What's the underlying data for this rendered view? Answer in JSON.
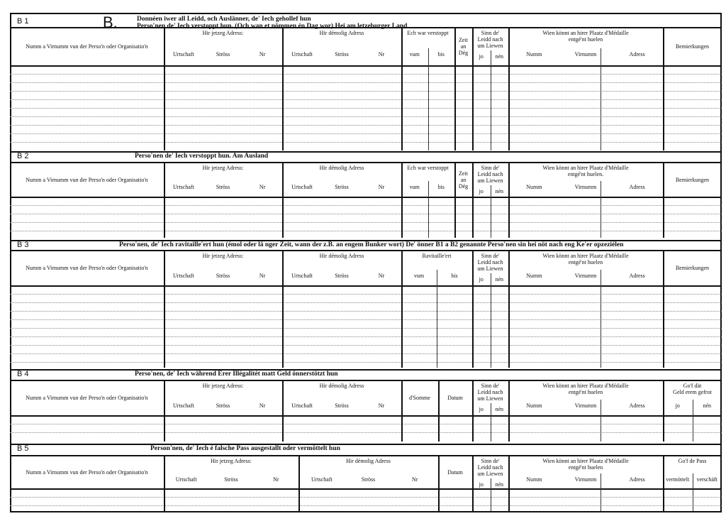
{
  "big_letter": "B.",
  "sections": [
    {
      "code": "B 1",
      "title_lines": [
        "Donnéen iwer all Leidd, och Auslänner, de' Iech gehollef hun",
        "Perso'nen de' Iech verstoppt hun. (Och wan et nömmen én Dag wor)    Hei am letzeburger Land"
      ],
      "columns": [
        {
          "label": [
            "Numm a Virnumm vun der Perso'n oder Organisatio'n"
          ],
          "sub": []
        },
        {
          "label": [
            "Hir jetzeg Adress:"
          ],
          "sub": [
            "Urtschaft",
            "Ströss",
            "Nr"
          ]
        },
        {
          "label": [
            "Hir démolig Adress"
          ],
          "sub": [
            "Urtschaft",
            "Ströss",
            "Nr"
          ]
        },
        {
          "label": [
            "Ech war verstoppt"
          ],
          "sub": [
            "vum",
            "bis"
          ]
        },
        {
          "label": [
            "Zeit",
            "an",
            "Dég"
          ],
          "sub": []
        },
        {
          "label": [
            "Sinn de'",
            "Leidd nach",
            "um Liewen"
          ],
          "sub": [
            "jo",
            "nén"
          ]
        },
        {
          "label": [
            "Wien könnt an hirer Plaatz d'Médaille",
            "entgé'nt huelen"
          ],
          "sub": [
            "Numm",
            "Virnumm",
            "Adress"
          ]
        },
        {
          "label": [
            "Bemierkungen"
          ],
          "sub": []
        }
      ]
    },
    {
      "code": "B 2",
      "title_lines": [
        "Perso'nen de' Iech verstoppt hun.                    Am Ausland"
      ],
      "columns": [
        {
          "label": [
            "Numm a Virnumm vun der Perso'n oder Organisatio'n"
          ],
          "sub": []
        },
        {
          "label": [
            "Hir jetzeg Adress:"
          ],
          "sub": [
            "Urtschaft",
            "Ströss",
            "Nr"
          ]
        },
        {
          "label": [
            "Hir démolig Adress"
          ],
          "sub": [
            "Urtschaft",
            "Ströss",
            "Nr"
          ]
        },
        {
          "label": [
            "Ech war verstoppt"
          ],
          "sub": [
            "vum",
            "bis"
          ]
        },
        {
          "label": [
            "Zeit",
            "an",
            "Dég"
          ],
          "sub": []
        },
        {
          "label": [
            "Sinn de'",
            "Leidd nach",
            "um Liewen"
          ],
          "sub": [
            "jo",
            "nén"
          ]
        },
        {
          "label": [
            "Wien könnt an hirer Plaatz d'Médaille",
            "entgé'nt huelen."
          ],
          "sub": [
            "Numm",
            "Virnumm",
            "Adress"
          ]
        },
        {
          "label": [
            "Bemierkungen"
          ],
          "sub": []
        }
      ]
    },
    {
      "code": "B 3",
      "title_lines": [
        "Perso'nen, de' Iech ravitaille'ert hun (émol oder lä nger Zeit, wann der z.B. an engem Bunker wort)   De' önner B1 a B2 genannte Perso'nen sin hei nöt nach eng Ke'er opzeziélen"
      ],
      "columns": [
        {
          "label": [
            "Numm a Virnumm vun der Perso'n oder Organisatio'n"
          ],
          "sub": []
        },
        {
          "label": [
            "Hir jetzeg Adress:"
          ],
          "sub": [
            "Urtschaft",
            "Ströss",
            "Nr"
          ]
        },
        {
          "label": [
            "Hir démolig Adress"
          ],
          "sub": [
            "Urtschaft",
            "Ströss",
            "Nr"
          ]
        },
        {
          "label": [
            "Ravitaille'ert"
          ],
          "sub": [
            "vum",
            "bis"
          ]
        },
        {
          "label": [
            "Sinn de'",
            "Leidd nach",
            "um Liewen"
          ],
          "sub": [
            "jo",
            "nén"
          ]
        },
        {
          "label": [
            "Wien könnt an hirer Plaatz d'Médaille",
            "entgé'nt huelen"
          ],
          "sub": [
            "Numm",
            "Virnumm",
            "Adress"
          ]
        },
        {
          "label": [
            "Bemierkungen"
          ],
          "sub": []
        }
      ]
    },
    {
      "code": "B 4",
      "title_lines": [
        "Perso'nen, de' Iech während Erer Illégalitét matt Geld önnerstötzt hun"
      ],
      "columns": [
        {
          "label": [
            "Numm a Virnumm vun der Perso'n oder Organisatio'n"
          ],
          "sub": []
        },
        {
          "label": [
            "Hir jetzeg Adress:"
          ],
          "sub": [
            "Urtschaft",
            "Ströss",
            "Nr"
          ]
        },
        {
          "label": [
            "Hir démolig Adress"
          ],
          "sub": [
            "Urtschaft",
            "Ströss",
            "Nr"
          ]
        },
        {
          "label": [
            "d'Somme"
          ],
          "sub": []
        },
        {
          "label": [
            "Datum"
          ],
          "sub": []
        },
        {
          "label": [
            "Sinn de'",
            "Leidd nach",
            "um Liewen"
          ],
          "sub": [
            "jo",
            "nén"
          ]
        },
        {
          "label": [
            "Wien könnt an hirer Plaatz d'Médaille",
            "entgé'nt huelen"
          ],
          "sub": [
            "Numm",
            "Virnumm",
            "Adress"
          ]
        },
        {
          "label": [
            "Go'f dät",
            "Geld erem gefrot"
          ],
          "sub": [
            "jo",
            "nén"
          ]
        }
      ]
    },
    {
      "code": "B 5",
      "title_lines": [
        "Person'nen, de' Iech é falsche Pass ausgestallt oder  vermöttelt hun"
      ],
      "columns": [
        {
          "label": [
            "Numm a Virnumm vun der Perso'n oder Organisatio'n"
          ],
          "sub": []
        },
        {
          "label": [
            "Hir jetzeg Adress:"
          ],
          "sub": [
            "Urtschaft",
            "Ströss",
            "Nr"
          ]
        },
        {
          "label": [
            "Hir démolig Adress"
          ],
          "sub": [
            "Urtschaft",
            "Ströss",
            "Nr"
          ]
        },
        {
          "label": [
            "Datum"
          ],
          "sub": []
        },
        {
          "label": [
            "Sinn de'",
            "Leidd nach",
            "um Liewen"
          ],
          "sub": [
            "jo",
            "nén"
          ]
        },
        {
          "label": [
            "Wien könnt an hirer Plaatz d'Médaille",
            "entgé'nt huelen"
          ],
          "sub": [
            "Numm",
            "Virnumm",
            "Adress"
          ]
        },
        {
          "label": [
            "Go'f de Pass"
          ],
          "sub": [
            "vermöttelt",
            "verschäft"
          ]
        }
      ]
    }
  ]
}
